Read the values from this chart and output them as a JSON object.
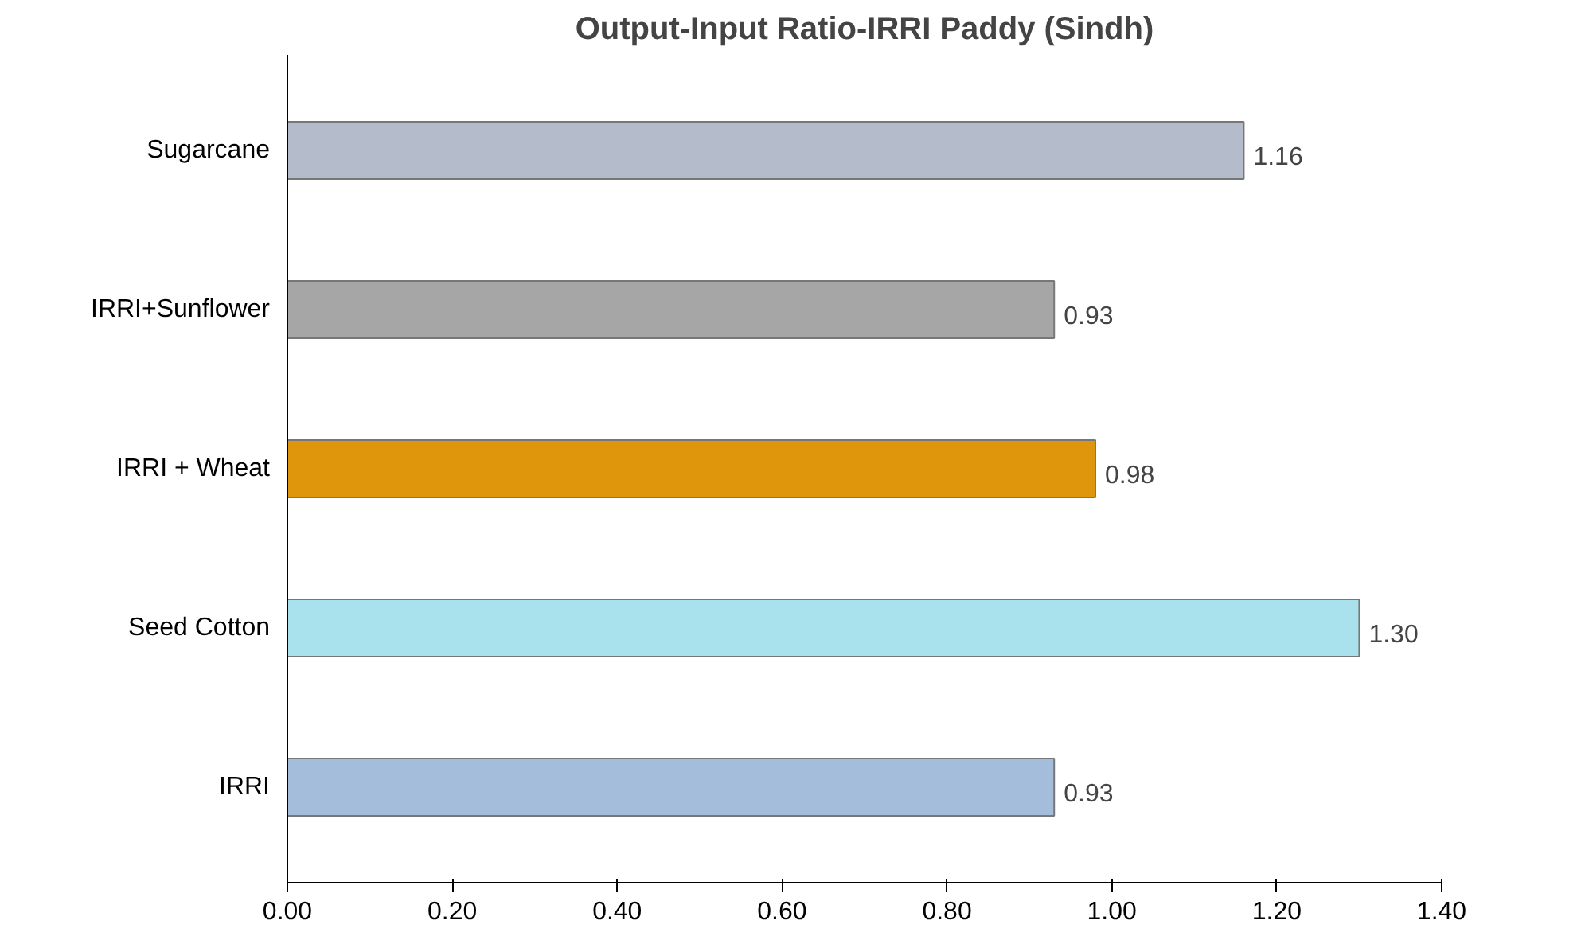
{
  "chart_data": {
    "type": "bar",
    "orientation": "horizontal",
    "title": "Output-Input Ratio-IRRI Paddy (Sindh)",
    "categories": [
      "Sugarcane",
      "IRRI+Sunflower",
      "IRRI + Wheat",
      "Seed Cotton",
      "IRRI"
    ],
    "values": [
      1.16,
      0.93,
      0.98,
      1.3,
      0.93
    ],
    "colors": [
      "#b4bccc",
      "#a6a6a6",
      "#e0960c",
      "#a9e1ec",
      "#a3bddb"
    ],
    "value_labels": [
      "1.16",
      "0.93",
      "0.98",
      "1.30",
      "0.93"
    ],
    "xlim": [
      0,
      1.4
    ],
    "xticks": [
      {
        "value": 0,
        "label": "0.00"
      },
      {
        "value": 0.2,
        "label": "0.20"
      },
      {
        "value": 0.4,
        "label": "0.40"
      },
      {
        "value": 0.6,
        "label": "0.60"
      },
      {
        "value": 0.8,
        "label": "0.80"
      },
      {
        "value": 1.0,
        "label": "1.00"
      },
      {
        "value": 1.2,
        "label": "1.20"
      },
      {
        "value": 1.4,
        "label": "1.40"
      }
    ],
    "grid": false
  }
}
